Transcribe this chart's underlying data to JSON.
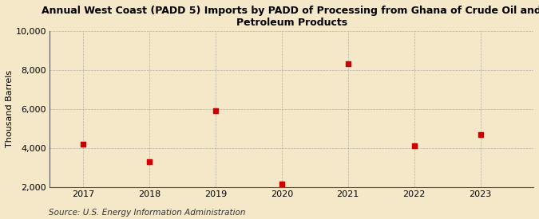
{
  "title": "Annual West Coast (PADD 5) Imports by PADD of Processing from Ghana of Crude Oil and\nPetroleum Products",
  "ylabel": "Thousand Barrels",
  "source": "Source: U.S. Energy Information Administration",
  "x": [
    2017,
    2018,
    2019,
    2020,
    2021,
    2022,
    2023
  ],
  "y": [
    4200,
    3300,
    5900,
    2150,
    8300,
    4100,
    4700
  ],
  "xlim": [
    2016.5,
    2023.8
  ],
  "ylim": [
    2000,
    10000
  ],
  "yticks": [
    2000,
    4000,
    6000,
    8000,
    10000
  ],
  "xticks": [
    2017,
    2018,
    2019,
    2020,
    2021,
    2022,
    2023
  ],
  "marker_color": "#cc0000",
  "marker": "s",
  "marker_size": 4,
  "bg_color": "#f5e8c8",
  "grid_color": "#999999",
  "title_fontsize": 9,
  "ylabel_fontsize": 8,
  "tick_fontsize": 8,
  "source_fontsize": 7.5
}
